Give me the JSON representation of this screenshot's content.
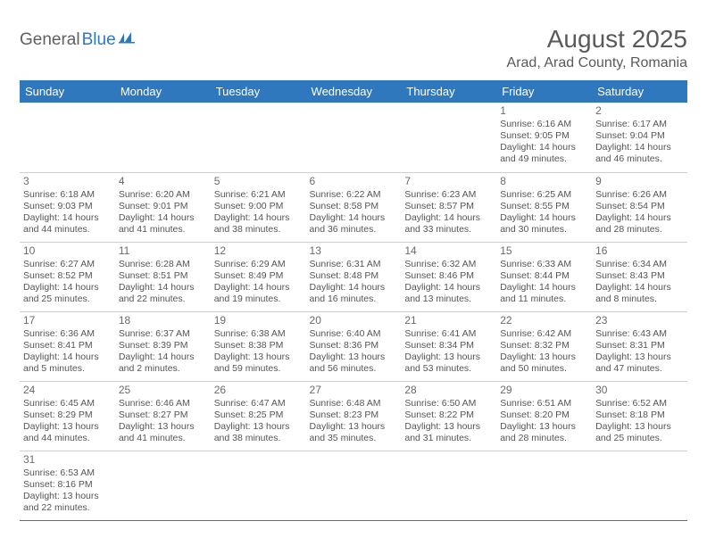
{
  "logo": {
    "part1": "General",
    "part2": "Blue"
  },
  "title": "August 2025",
  "location": "Arad, Arad County, Romania",
  "colors": {
    "header_bg": "#2f78bd",
    "header_text": "#ffffff",
    "row_divider": "#2f78bd",
    "cell_divider": "#d0d0d0",
    "text": "#555555"
  },
  "weekdays": [
    "Sunday",
    "Monday",
    "Tuesday",
    "Wednesday",
    "Thursday",
    "Friday",
    "Saturday"
  ],
  "weeks": [
    [
      null,
      null,
      null,
      null,
      null,
      {
        "n": "1",
        "sr": "Sunrise: 6:16 AM",
        "ss": "Sunset: 9:05 PM",
        "dl": "Daylight: 14 hours and 49 minutes."
      },
      {
        "n": "2",
        "sr": "Sunrise: 6:17 AM",
        "ss": "Sunset: 9:04 PM",
        "dl": "Daylight: 14 hours and 46 minutes."
      }
    ],
    [
      {
        "n": "3",
        "sr": "Sunrise: 6:18 AM",
        "ss": "Sunset: 9:03 PM",
        "dl": "Daylight: 14 hours and 44 minutes."
      },
      {
        "n": "4",
        "sr": "Sunrise: 6:20 AM",
        "ss": "Sunset: 9:01 PM",
        "dl": "Daylight: 14 hours and 41 minutes."
      },
      {
        "n": "5",
        "sr": "Sunrise: 6:21 AM",
        "ss": "Sunset: 9:00 PM",
        "dl": "Daylight: 14 hours and 38 minutes."
      },
      {
        "n": "6",
        "sr": "Sunrise: 6:22 AM",
        "ss": "Sunset: 8:58 PM",
        "dl": "Daylight: 14 hours and 36 minutes."
      },
      {
        "n": "7",
        "sr": "Sunrise: 6:23 AM",
        "ss": "Sunset: 8:57 PM",
        "dl": "Daylight: 14 hours and 33 minutes."
      },
      {
        "n": "8",
        "sr": "Sunrise: 6:25 AM",
        "ss": "Sunset: 8:55 PM",
        "dl": "Daylight: 14 hours and 30 minutes."
      },
      {
        "n": "9",
        "sr": "Sunrise: 6:26 AM",
        "ss": "Sunset: 8:54 PM",
        "dl": "Daylight: 14 hours and 28 minutes."
      }
    ],
    [
      {
        "n": "10",
        "sr": "Sunrise: 6:27 AM",
        "ss": "Sunset: 8:52 PM",
        "dl": "Daylight: 14 hours and 25 minutes."
      },
      {
        "n": "11",
        "sr": "Sunrise: 6:28 AM",
        "ss": "Sunset: 8:51 PM",
        "dl": "Daylight: 14 hours and 22 minutes."
      },
      {
        "n": "12",
        "sr": "Sunrise: 6:29 AM",
        "ss": "Sunset: 8:49 PM",
        "dl": "Daylight: 14 hours and 19 minutes."
      },
      {
        "n": "13",
        "sr": "Sunrise: 6:31 AM",
        "ss": "Sunset: 8:48 PM",
        "dl": "Daylight: 14 hours and 16 minutes."
      },
      {
        "n": "14",
        "sr": "Sunrise: 6:32 AM",
        "ss": "Sunset: 8:46 PM",
        "dl": "Daylight: 14 hours and 13 minutes."
      },
      {
        "n": "15",
        "sr": "Sunrise: 6:33 AM",
        "ss": "Sunset: 8:44 PM",
        "dl": "Daylight: 14 hours and 11 minutes."
      },
      {
        "n": "16",
        "sr": "Sunrise: 6:34 AM",
        "ss": "Sunset: 8:43 PM",
        "dl": "Daylight: 14 hours and 8 minutes."
      }
    ],
    [
      {
        "n": "17",
        "sr": "Sunrise: 6:36 AM",
        "ss": "Sunset: 8:41 PM",
        "dl": "Daylight: 14 hours and 5 minutes."
      },
      {
        "n": "18",
        "sr": "Sunrise: 6:37 AM",
        "ss": "Sunset: 8:39 PM",
        "dl": "Daylight: 14 hours and 2 minutes."
      },
      {
        "n": "19",
        "sr": "Sunrise: 6:38 AM",
        "ss": "Sunset: 8:38 PM",
        "dl": "Daylight: 13 hours and 59 minutes."
      },
      {
        "n": "20",
        "sr": "Sunrise: 6:40 AM",
        "ss": "Sunset: 8:36 PM",
        "dl": "Daylight: 13 hours and 56 minutes."
      },
      {
        "n": "21",
        "sr": "Sunrise: 6:41 AM",
        "ss": "Sunset: 8:34 PM",
        "dl": "Daylight: 13 hours and 53 minutes."
      },
      {
        "n": "22",
        "sr": "Sunrise: 6:42 AM",
        "ss": "Sunset: 8:32 PM",
        "dl": "Daylight: 13 hours and 50 minutes."
      },
      {
        "n": "23",
        "sr": "Sunrise: 6:43 AM",
        "ss": "Sunset: 8:31 PM",
        "dl": "Daylight: 13 hours and 47 minutes."
      }
    ],
    [
      {
        "n": "24",
        "sr": "Sunrise: 6:45 AM",
        "ss": "Sunset: 8:29 PM",
        "dl": "Daylight: 13 hours and 44 minutes."
      },
      {
        "n": "25",
        "sr": "Sunrise: 6:46 AM",
        "ss": "Sunset: 8:27 PM",
        "dl": "Daylight: 13 hours and 41 minutes."
      },
      {
        "n": "26",
        "sr": "Sunrise: 6:47 AM",
        "ss": "Sunset: 8:25 PM",
        "dl": "Daylight: 13 hours and 38 minutes."
      },
      {
        "n": "27",
        "sr": "Sunrise: 6:48 AM",
        "ss": "Sunset: 8:23 PM",
        "dl": "Daylight: 13 hours and 35 minutes."
      },
      {
        "n": "28",
        "sr": "Sunrise: 6:50 AM",
        "ss": "Sunset: 8:22 PM",
        "dl": "Daylight: 13 hours and 31 minutes."
      },
      {
        "n": "29",
        "sr": "Sunrise: 6:51 AM",
        "ss": "Sunset: 8:20 PM",
        "dl": "Daylight: 13 hours and 28 minutes."
      },
      {
        "n": "30",
        "sr": "Sunrise: 6:52 AM",
        "ss": "Sunset: 8:18 PM",
        "dl": "Daylight: 13 hours and 25 minutes."
      }
    ],
    [
      {
        "n": "31",
        "sr": "Sunrise: 6:53 AM",
        "ss": "Sunset: 8:16 PM",
        "dl": "Daylight: 13 hours and 22 minutes."
      },
      null,
      null,
      null,
      null,
      null,
      null
    ]
  ]
}
